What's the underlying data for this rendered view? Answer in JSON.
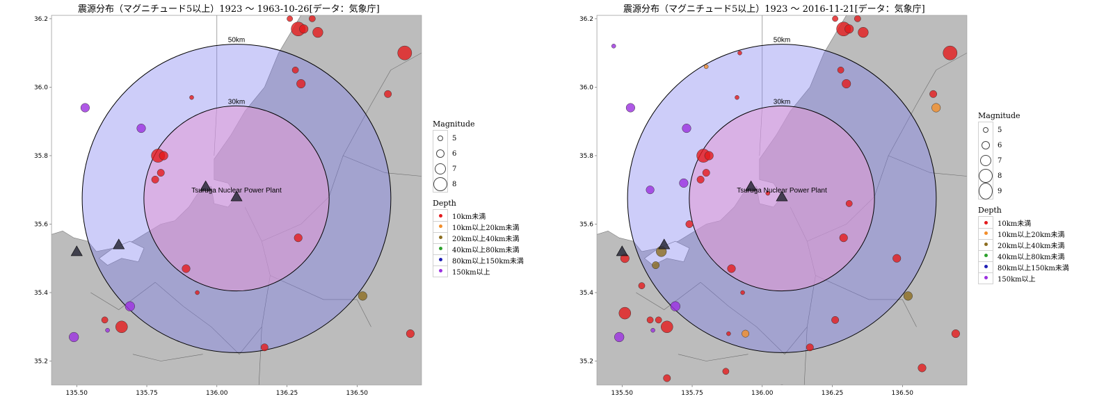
{
  "panels": [
    {
      "title": "震源分布（マグニチュード5以上）1923 ～ 1963-10-26[データ：気象庁]",
      "magnitude_legend": [
        "5",
        "6",
        "7",
        "8"
      ],
      "events": [
        {
          "lon": 135.53,
          "lat": 35.94,
          "mag": 5.6,
          "depth": "150km以上"
        },
        {
          "lon": 135.73,
          "lat": 35.88,
          "mag": 5.6,
          "depth": "150km以上"
        },
        {
          "lon": 135.79,
          "lat": 35.8,
          "mag": 6.2,
          "depth": "10km未満"
        },
        {
          "lon": 135.81,
          "lat": 35.8,
          "mag": 5.6,
          "depth": "10km未満"
        },
        {
          "lon": 135.8,
          "lat": 35.75,
          "mag": 5.4,
          "depth": "10km未満"
        },
        {
          "lon": 135.78,
          "lat": 35.73,
          "mag": 5.4,
          "depth": "10km未満"
        },
        {
          "lon": 135.91,
          "lat": 35.97,
          "mag": 5.0,
          "depth": "10km未満"
        },
        {
          "lon": 135.89,
          "lat": 35.47,
          "mag": 5.5,
          "depth": "10km未満"
        },
        {
          "lon": 135.93,
          "lat": 35.4,
          "mag": 5.0,
          "depth": "10km未満"
        },
        {
          "lon": 135.69,
          "lat": 35.36,
          "mag": 5.7,
          "depth": "150km以上"
        },
        {
          "lon": 135.6,
          "lat": 35.32,
          "mag": 5.3,
          "depth": "10km未満"
        },
        {
          "lon": 135.66,
          "lat": 35.3,
          "mag": 6.0,
          "depth": "10km未満"
        },
        {
          "lon": 135.61,
          "lat": 35.29,
          "mag": 5.0,
          "depth": "150km以上"
        },
        {
          "lon": 135.49,
          "lat": 35.27,
          "mag": 5.7,
          "depth": "150km以上"
        },
        {
          "lon": 136.17,
          "lat": 35.24,
          "mag": 5.4,
          "depth": "10km未満"
        },
        {
          "lon": 136.29,
          "lat": 35.56,
          "mag": 5.5,
          "depth": "10km未満"
        },
        {
          "lon": 136.52,
          "lat": 35.39,
          "mag": 5.6,
          "depth": "20km以上40km未満"
        },
        {
          "lon": 136.69,
          "lat": 35.28,
          "mag": 5.5,
          "depth": "10km未満"
        },
        {
          "lon": 136.28,
          "lat": 36.05,
          "mag": 5.3,
          "depth": "10km未満"
        },
        {
          "lon": 136.3,
          "lat": 36.01,
          "mag": 5.6,
          "depth": "10km未満"
        },
        {
          "lon": 136.61,
          "lat": 35.98,
          "mag": 5.4,
          "depth": "10km未満"
        },
        {
          "lon": 136.29,
          "lat": 36.17,
          "mag": 6.3,
          "depth": "10km未満"
        },
        {
          "lon": 136.31,
          "lat": 36.17,
          "mag": 5.6,
          "depth": "10km未満"
        },
        {
          "lon": 136.34,
          "lat": 36.2,
          "mag": 5.3,
          "depth": "10km未満"
        },
        {
          "lon": 136.36,
          "lat": 36.16,
          "mag": 5.8,
          "depth": "10km未満"
        },
        {
          "lon": 136.67,
          "lat": 36.1,
          "mag": 6.3,
          "depth": "10km未満"
        },
        {
          "lon": 136.26,
          "lat": 36.2,
          "mag": 5.2,
          "depth": "10km未満"
        }
      ]
    },
    {
      "title": "震源分布（マグニチュード5以上）1923 ～ 2016-11-21[データ：気象庁]",
      "magnitude_legend": [
        "5",
        "6",
        "7",
        "8",
        "9"
      ],
      "events": [
        {
          "lon": 135.47,
          "lat": 36.12,
          "mag": 5.0,
          "depth": "150km以上"
        },
        {
          "lon": 135.53,
          "lat": 35.94,
          "mag": 5.6,
          "depth": "150km以上"
        },
        {
          "lon": 135.73,
          "lat": 35.88,
          "mag": 5.6,
          "depth": "150km以上"
        },
        {
          "lon": 135.79,
          "lat": 35.8,
          "mag": 6.2,
          "depth": "10km未満"
        },
        {
          "lon": 135.81,
          "lat": 35.8,
          "mag": 5.6,
          "depth": "10km未満"
        },
        {
          "lon": 135.8,
          "lat": 35.75,
          "mag": 5.4,
          "depth": "10km未満"
        },
        {
          "lon": 135.78,
          "lat": 35.73,
          "mag": 5.4,
          "depth": "10km未満"
        },
        {
          "lon": 135.72,
          "lat": 35.72,
          "mag": 5.6,
          "depth": "150km以上"
        },
        {
          "lon": 135.6,
          "lat": 35.7,
          "mag": 5.5,
          "depth": "150km以上"
        },
        {
          "lon": 135.74,
          "lat": 35.6,
          "mag": 5.4,
          "depth": "10km未満"
        },
        {
          "lon": 135.91,
          "lat": 35.97,
          "mag": 5.0,
          "depth": "10km未満"
        },
        {
          "lon": 135.8,
          "lat": 36.06,
          "mag": 5.0,
          "depth": "10km以上20km未満"
        },
        {
          "lon": 135.92,
          "lat": 36.1,
          "mag": 5.0,
          "depth": "10km未満"
        },
        {
          "lon": 136.02,
          "lat": 35.69,
          "mag": 5.0,
          "depth": "10km未満"
        },
        {
          "lon": 136.31,
          "lat": 35.66,
          "mag": 5.3,
          "depth": "10km未満"
        },
        {
          "lon": 136.29,
          "lat": 35.56,
          "mag": 5.5,
          "depth": "10km未満"
        },
        {
          "lon": 136.48,
          "lat": 35.5,
          "mag": 5.5,
          "depth": "10km未満"
        },
        {
          "lon": 135.64,
          "lat": 35.52,
          "mag": 5.8,
          "depth": "20km以上40km未満"
        },
        {
          "lon": 135.62,
          "lat": 35.48,
          "mag": 5.4,
          "depth": "20km以上40km未満"
        },
        {
          "lon": 135.51,
          "lat": 35.5,
          "mag": 5.6,
          "depth": "10km未満"
        },
        {
          "lon": 135.57,
          "lat": 35.42,
          "mag": 5.3,
          "depth": "10km未満"
        },
        {
          "lon": 135.89,
          "lat": 35.47,
          "mag": 5.5,
          "depth": "10km未満"
        },
        {
          "lon": 135.93,
          "lat": 35.4,
          "mag": 5.0,
          "depth": "10km未満"
        },
        {
          "lon": 135.69,
          "lat": 35.36,
          "mag": 5.7,
          "depth": "150km以上"
        },
        {
          "lon": 135.51,
          "lat": 35.34,
          "mag": 6.0,
          "depth": "10km未満"
        },
        {
          "lon": 135.6,
          "lat": 35.32,
          "mag": 5.3,
          "depth": "10km未満"
        },
        {
          "lon": 135.63,
          "lat": 35.32,
          "mag": 5.3,
          "depth": "10km未満"
        },
        {
          "lon": 135.66,
          "lat": 35.3,
          "mag": 6.0,
          "depth": "10km未満"
        },
        {
          "lon": 135.61,
          "lat": 35.29,
          "mag": 5.0,
          "depth": "150km以上"
        },
        {
          "lon": 135.49,
          "lat": 35.27,
          "mag": 5.7,
          "depth": "150km以上"
        },
        {
          "lon": 135.88,
          "lat": 35.28,
          "mag": 5.0,
          "depth": "10km未満"
        },
        {
          "lon": 135.94,
          "lat": 35.28,
          "mag": 5.4,
          "depth": "10km以上20km未満"
        },
        {
          "lon": 136.17,
          "lat": 35.24,
          "mag": 5.4,
          "depth": "10km未満"
        },
        {
          "lon": 136.26,
          "lat": 35.32,
          "mag": 5.4,
          "depth": "10km未満"
        },
        {
          "lon": 135.66,
          "lat": 35.15,
          "mag": 5.4,
          "depth": "10km未満"
        },
        {
          "lon": 135.87,
          "lat": 35.17,
          "mag": 5.3,
          "depth": "10km未満"
        },
        {
          "lon": 136.07,
          "lat": 35.12,
          "mag": 5.4,
          "depth": "10km未満"
        },
        {
          "lon": 136.57,
          "lat": 35.18,
          "mag": 5.5,
          "depth": "10km未満"
        },
        {
          "lon": 136.52,
          "lat": 35.39,
          "mag": 5.6,
          "depth": "20km以上40km未満"
        },
        {
          "lon": 136.69,
          "lat": 35.28,
          "mag": 5.5,
          "depth": "10km未満"
        },
        {
          "lon": 136.28,
          "lat": 36.05,
          "mag": 5.3,
          "depth": "10km未満"
        },
        {
          "lon": 136.3,
          "lat": 36.01,
          "mag": 5.6,
          "depth": "10km未満"
        },
        {
          "lon": 136.61,
          "lat": 35.98,
          "mag": 5.4,
          "depth": "10km未満"
        },
        {
          "lon": 136.62,
          "lat": 35.94,
          "mag": 5.6,
          "depth": "10km以上20km未満"
        },
        {
          "lon": 136.29,
          "lat": 36.17,
          "mag": 6.3,
          "depth": "10km未満"
        },
        {
          "lon": 136.31,
          "lat": 36.17,
          "mag": 5.6,
          "depth": "10km未満"
        },
        {
          "lon": 136.34,
          "lat": 36.2,
          "mag": 5.3,
          "depth": "10km未満"
        },
        {
          "lon": 136.36,
          "lat": 36.16,
          "mag": 5.8,
          "depth": "10km未満"
        },
        {
          "lon": 136.67,
          "lat": 36.1,
          "mag": 6.3,
          "depth": "10km未満"
        },
        {
          "lon": 136.26,
          "lat": 36.2,
          "mag": 5.2,
          "depth": "10km未満"
        }
      ]
    }
  ],
  "map": {
    "lon_range": [
      135.41,
      136.73
    ],
    "lat_range": [
      35.13,
      36.21
    ],
    "x_ticks": [
      "135.50",
      "135.75",
      "136.00",
      "136.25",
      "136.50"
    ],
    "x_tick_values": [
      135.5,
      135.75,
      136.0,
      136.25,
      136.5
    ],
    "y_ticks": [
      "35.2",
      "35.4",
      "35.6",
      "35.8",
      "36.0",
      "36.2"
    ],
    "y_tick_values": [
      35.2,
      35.4,
      35.6,
      35.8,
      36.0,
      36.2
    ],
    "plant_label": "Tsuruga Nuclear Power Plant",
    "plant_center": {
      "lon": 136.07,
      "lat": 35.675
    },
    "ring_labels": [
      "50km",
      "30km"
    ],
    "ring_radii_km": [
      50,
      30
    ],
    "reactors": [
      {
        "lon": 135.96,
        "lat": 35.71
      },
      {
        "lon": 136.07,
        "lat": 35.68
      },
      {
        "lon": 135.65,
        "lat": 35.54
      },
      {
        "lon": 135.5,
        "lat": 35.52
      }
    ]
  },
  "legend": {
    "magnitude_title": "Magnitude",
    "depth_title": "Depth",
    "depth_classes": [
      {
        "label": "10km未満",
        "color": "#e41a1c"
      },
      {
        "label": "10km以上20km未満",
        "color": "#f28e2b"
      },
      {
        "label": "20km以上40km未満",
        "color": "#8c6d1f"
      },
      {
        "label": "40km以上80km未満",
        "color": "#2ca02c"
      },
      {
        "label": "80km以上150km未満",
        "color": "#1f1fb4"
      },
      {
        "label": "150km以上",
        "color": "#9b30e0"
      }
    ]
  },
  "colors": {
    "land": "#bcbcbc",
    "sea": "#ffffff",
    "outer_ring": "#8f8fe8",
    "inner_ring": "#c98fd2"
  }
}
